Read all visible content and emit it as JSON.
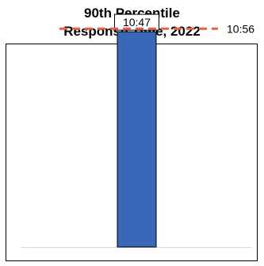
{
  "chart_data": {
    "type": "bar",
    "title_lines": [
      "90th Percentile",
      "Response Time, 2022"
    ],
    "categories": [
      ""
    ],
    "values_minutes": [
      10.7833
    ],
    "value_labels": [
      "10:47"
    ],
    "reference_line": {
      "value_minutes": 10.9333,
      "label": "10:56",
      "style": "dashed",
      "color": "#e8614d"
    },
    "ylim_minutes": [
      0,
      11.5
    ],
    "grid": false,
    "legend": "none",
    "colors": {
      "bar": "#3a67b8",
      "bar_edge": "#000000",
      "border": "#000000",
      "baseline": "#d9d9d9"
    }
  }
}
